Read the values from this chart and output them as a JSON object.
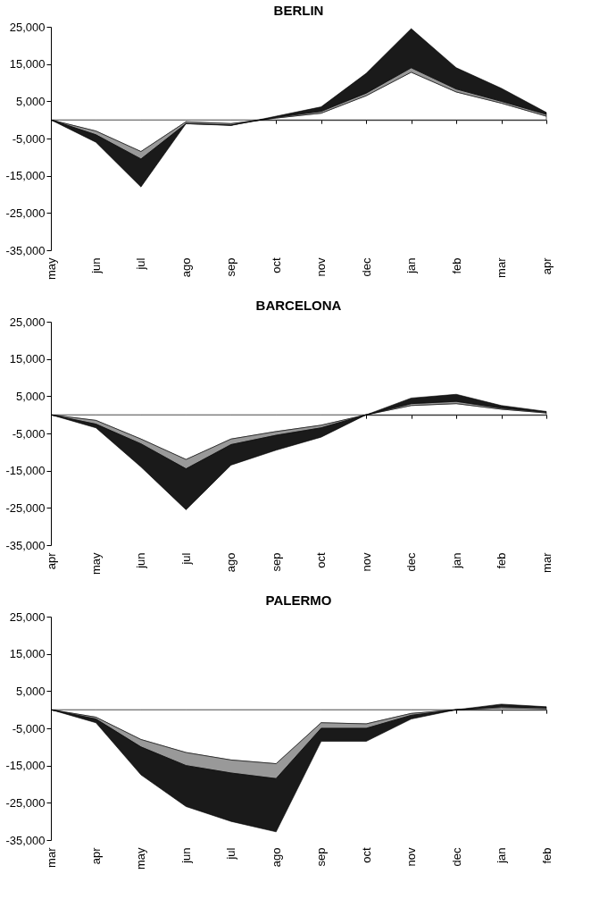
{
  "chart_data": [
    {
      "type": "area",
      "title": "BERLIN",
      "stacked": true,
      "grid": false,
      "categories": [
        "may",
        "jun",
        "jul",
        "ago",
        "sep",
        "oct",
        "nov",
        "dec",
        "jan",
        "feb",
        "mar",
        "apr"
      ],
      "ylim": [
        -35000,
        25000
      ],
      "yticks": [
        {
          "value": -35000,
          "label": "-35,000"
        },
        {
          "value": -25000,
          "label": "-25,000"
        },
        {
          "value": -15000,
          "label": "-15,000"
        },
        {
          "value": -5000,
          "label": "-5,000"
        },
        {
          "value": 5000,
          "label": "5,000"
        },
        {
          "value": 15000,
          "label": "15,000"
        },
        {
          "value": 25000,
          "label": "25,000"
        }
      ],
      "series": [
        {
          "color": "#ffffff",
          "values": [
            0,
            -3000,
            -8500,
            -500,
            -1000,
            500,
            1800,
            6500,
            12800,
            7500,
            4500,
            1000
          ]
        },
        {
          "color": "#999999",
          "values": [
            0,
            -1000,
            -2000,
            -500,
            -400,
            200,
            500,
            700,
            1200,
            800,
            500,
            500
          ]
        },
        {
          "color": "#1a1a1a",
          "values": [
            0,
            -2000,
            -7500,
            0,
            -100,
            300,
            1200,
            5300,
            10500,
            5700,
            3500,
            500
          ]
        }
      ]
    },
    {
      "type": "area",
      "title": "BARCELONA",
      "stacked": true,
      "grid": false,
      "categories": [
        "apr",
        "may",
        "jun",
        "jul",
        "ago",
        "sep",
        "oct",
        "nov",
        "dec",
        "jan",
        "feb",
        "mar"
      ],
      "ylim": [
        -35000,
        25000
      ],
      "yticks": [
        {
          "value": -35000,
          "label": "-35,000"
        },
        {
          "value": -25000,
          "label": "-25,000"
        },
        {
          "value": -15000,
          "label": "-15,000"
        },
        {
          "value": -5000,
          "label": "-5,000"
        },
        {
          "value": 5000,
          "label": "5,000"
        },
        {
          "value": 15000,
          "label": "15,000"
        },
        {
          "value": 25000,
          "label": "25,000"
        }
      ],
      "series": [
        {
          "color": "#ffffff",
          "values": [
            0,
            -1500,
            -6500,
            -12000,
            -6500,
            -4500,
            -2800,
            0,
            2500,
            3000,
            1500,
            500
          ]
        },
        {
          "color": "#999999",
          "values": [
            0,
            -1000,
            -1300,
            -2500,
            -1500,
            -1000,
            -700,
            0,
            500,
            600,
            300,
            200
          ]
        },
        {
          "color": "#1a1a1a",
          "values": [
            0,
            -1000,
            -6200,
            -11000,
            -5500,
            -4000,
            -2500,
            0,
            1500,
            1900,
            700,
            200
          ]
        }
      ]
    },
    {
      "type": "area",
      "title": "PALERMO",
      "stacked": true,
      "grid": false,
      "categories": [
        "mar",
        "apr",
        "may",
        "jun",
        "jul",
        "ago",
        "sep",
        "oct",
        "nov",
        "dec",
        "jan",
        "feb"
      ],
      "ylim": [
        -35000,
        25000
      ],
      "yticks": [
        {
          "value": -35000,
          "label": "-35,000"
        },
        {
          "value": -25000,
          "label": "-25,000"
        },
        {
          "value": -15000,
          "label": "-15,000"
        },
        {
          "value": -5000,
          "label": "-5,000"
        },
        {
          "value": 5000,
          "label": "5,000"
        },
        {
          "value": 15000,
          "label": "15,000"
        },
        {
          "value": 25000,
          "label": "25,000"
        }
      ],
      "series": [
        {
          "color": "#ffffff",
          "values": [
            0,
            -2000,
            -8000,
            -11500,
            -13500,
            -14500,
            -3500,
            -3800,
            -1000,
            0,
            500,
            300
          ]
        },
        {
          "color": "#999999",
          "values": [
            0,
            -500,
            -2000,
            -3500,
            -3500,
            -4000,
            -1500,
            -1200,
            -500,
            0,
            300,
            200
          ]
        },
        {
          "color": "#1a1a1a",
          "values": [
            0,
            -1000,
            -7500,
            -11000,
            -13000,
            -14300,
            -3500,
            -3500,
            -1000,
            0,
            700,
            300
          ]
        }
      ]
    }
  ]
}
